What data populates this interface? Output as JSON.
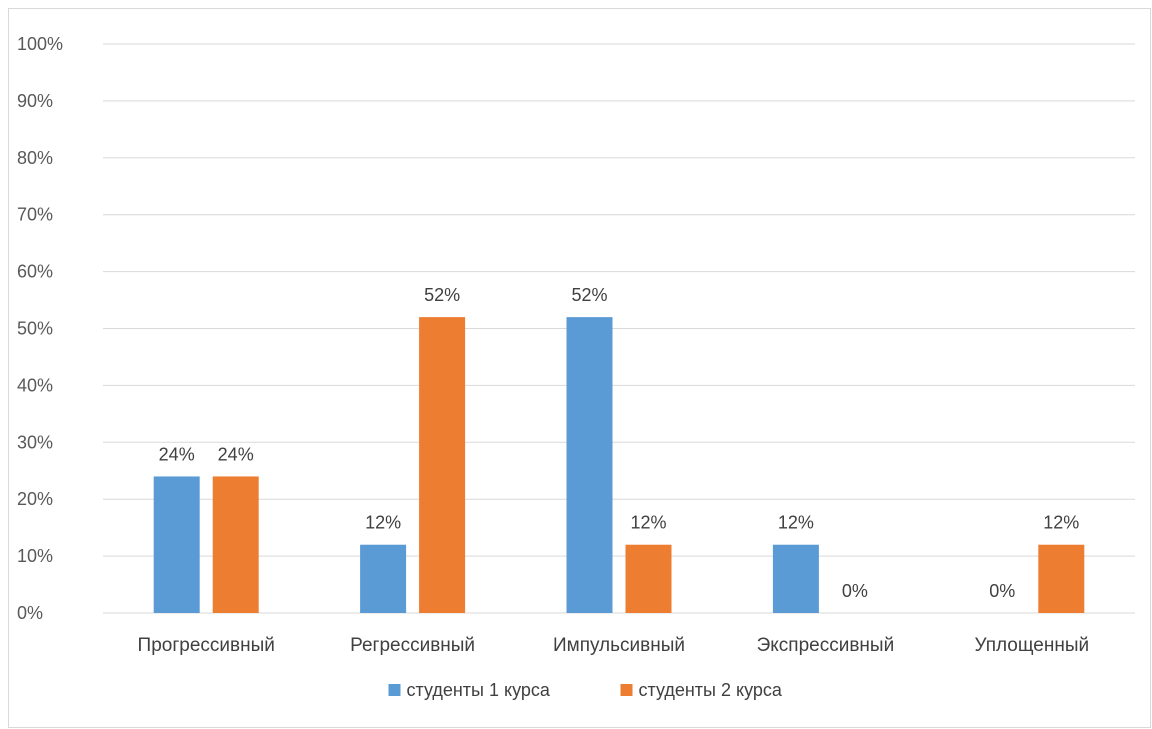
{
  "chart_data": {
    "type": "bar",
    "categories": [
      "Прогрессивный",
      "Регрессивный",
      "Импульсивный",
      "Экспрессивный",
      "Уплощенный"
    ],
    "series": [
      {
        "name": "студенты 1 курса",
        "values": [
          24,
          12,
          52,
          12,
          0
        ],
        "color": "#5b9bd5"
      },
      {
        "name": "студенты 2 курса",
        "values": [
          24,
          52,
          12,
          0,
          12
        ],
        "color": "#ed7d31"
      }
    ],
    "value_format": "percent",
    "ylim": [
      0,
      100
    ],
    "yticks": [
      0,
      10,
      20,
      30,
      40,
      50,
      60,
      70,
      80,
      90,
      100
    ],
    "ytick_labels": [
      "0%",
      "10%",
      "20%",
      "30%",
      "40%",
      "50%",
      "60%",
      "70%",
      "80%",
      "90%",
      "100%"
    ],
    "data_labels": [
      [
        "24%",
        "12%",
        "52%",
        "12%",
        "0%"
      ],
      [
        "24%",
        "52%",
        "12%",
        "0%",
        "12%"
      ]
    ],
    "grid": true,
    "legend_position": "bottom-center",
    "gridline_color": "#d9d9d9"
  }
}
